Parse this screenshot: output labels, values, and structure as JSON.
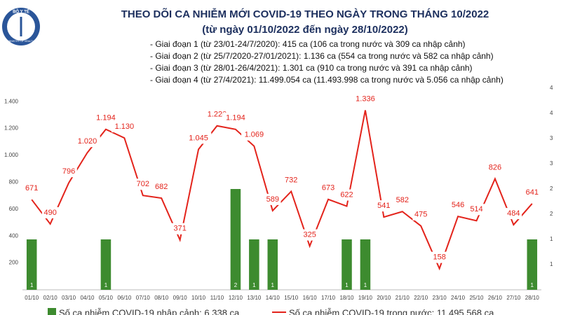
{
  "header": {
    "logo_top": "BỘ Y TẾ",
    "logo_bottom": "MINISTRY OF HEALTH"
  },
  "chart_data": {
    "type": "combo",
    "title": "THEO DÕI CA NHIỄM MỚI COVID-19 THEO NGÀY TRONG THÁNG 10/2022",
    "subtitle": "(từ ngày 01/10/2022 đến ngày 28/10/2022)",
    "notes": [
      "- Giai đoạn 1 (từ 23/01-24/7/2020): 415 ca (106 ca trong nước và 309 ca nhập cảnh)",
      "- Giai đoạn 2 (từ 25/7/2020-27/01/2021): 1.136 ca (554 ca trong nước và 582 ca nhập cảnh)",
      "- Giai đoạn 3 (từ 28/01-26/4/2021): 1.301 ca (910 ca trong nước và 391 ca nhập cảnh)",
      "- Giai đoạn 4 (từ 27/4/2021): 11.499.054 ca (11.493.998 ca trong nước và 5.056 ca nhập cảnh)"
    ],
    "categories": [
      "01/10",
      "02/10",
      "03/10",
      "04/10",
      "05/10",
      "06/10",
      "07/10",
      "08/10",
      "09/10",
      "10/10",
      "11/10",
      "12/10",
      "13/10",
      "14/10",
      "15/10",
      "16/10",
      "17/10",
      "18/10",
      "19/10",
      "20/10",
      "21/10",
      "22/10",
      "23/10",
      "24/10",
      "25/10",
      "26/10",
      "27/10",
      "28/10"
    ],
    "series": [
      {
        "name": "Số ca nhiễm COVID-19 nhập cảnh: 6.338 ca",
        "type": "bar",
        "axis": "y2",
        "color": "#3d8b2f",
        "values": [
          1,
          0,
          0,
          0,
          1,
          0,
          0,
          0,
          0,
          0,
          0,
          2,
          1,
          1,
          0,
          0,
          0,
          1,
          1,
          0,
          0,
          0,
          0,
          0,
          0,
          0,
          0,
          1
        ]
      },
      {
        "name": "Số ca nhiễm COVID-19 trong nước: 11.495.568 ca",
        "type": "line",
        "color": "#e3231b",
        "values": [
          671,
          490,
          796,
          1020,
          1194,
          1130,
          702,
          682,
          371,
          1045,
          1220,
          1194,
          1069,
          589,
          732,
          325,
          673,
          622,
          1336,
          541,
          582,
          475,
          158,
          546,
          514,
          826,
          484,
          641
        ],
        "value_labels": [
          "671",
          "490",
          "796",
          "1.020",
          "1.194",
          "1.130",
          "702",
          "682",
          "371",
          "1.045",
          "1.220",
          "1.194",
          "1.069",
          "589",
          "732",
          "325",
          "673",
          "622",
          "1.336",
          "541",
          "582",
          "475",
          "158",
          "546",
          "514",
          "826",
          "484",
          "641"
        ]
      }
    ],
    "ylim": [
      0,
      1500
    ],
    "yticks": [
      200,
      400,
      600,
      800,
      {
        "value": 1000,
        "label": "1.000"
      },
      {
        "value": 1200,
        "label": "1.200"
      },
      {
        "value": 1400,
        "label": "1.400"
      }
    ],
    "y2lim": [
      0,
      4
    ],
    "y2ticks": [
      {
        "value": 0.5,
        "label": "1"
      },
      1,
      {
        "value": 1.5,
        "label": "2"
      },
      2,
      {
        "value": 2.5,
        "label": "3"
      },
      3,
      {
        "value": 3.5,
        "label": "4"
      },
      4
    ]
  }
}
